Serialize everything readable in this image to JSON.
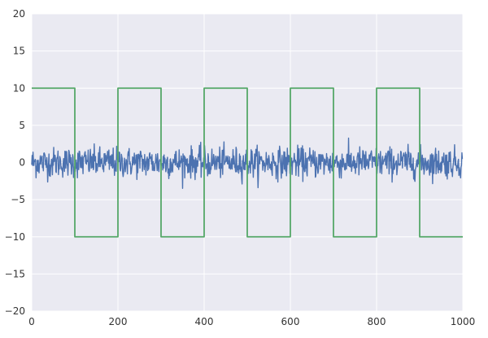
{
  "chart_data": {
    "type": "line",
    "title": "",
    "xlabel": "",
    "ylabel": "",
    "xlim": [
      0,
      1000
    ],
    "ylim": [
      -20,
      20
    ],
    "x_ticks": [
      "0",
      "200",
      "400",
      "600",
      "800",
      "1000"
    ],
    "y_ticks": [
      "20",
      "15",
      "10",
      "5",
      "0",
      "−5",
      "−10",
      "−15",
      "−20"
    ],
    "grid": true,
    "background_color": "#eaeaf2",
    "grid_color": "#ffffff",
    "series": [
      {
        "color": "#4c72b0",
        "kind": "noise",
        "n_points": 1000,
        "mean": 0,
        "std": 1,
        "min_approx": -3.8,
        "max_approx": 3.8
      },
      {
        "color": "#55a868",
        "kind": "square-wave",
        "x": [
          0,
          100,
          100,
          200,
          200,
          300,
          300,
          400,
          400,
          500,
          500,
          600,
          600,
          700,
          700,
          800,
          800,
          900,
          900,
          1000
        ],
        "y": [
          10,
          10,
          -10,
          -10,
          10,
          10,
          -10,
          -10,
          10,
          10,
          -10,
          -10,
          10,
          10,
          -10,
          -10,
          10,
          10,
          -10,
          -10
        ]
      }
    ]
  }
}
